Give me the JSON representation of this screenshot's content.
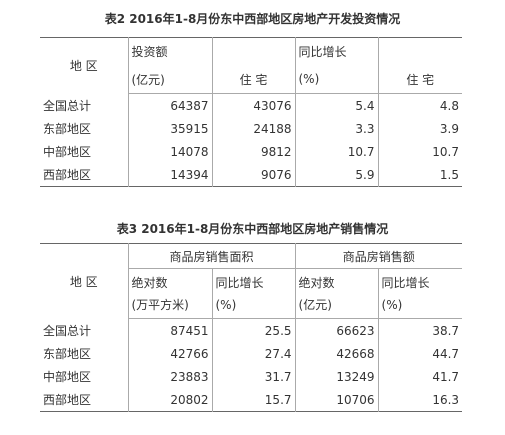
{
  "table2": {
    "title": "表2 2016年1-8月份东中西部地区房地产开发投资情况",
    "header": {
      "region": "地 区",
      "investment": "投资额",
      "investment_unit": "(亿元)",
      "residential": "住 宅",
      "growth": "同比增长",
      "growth_unit": "(%)",
      "growth_residential": "住 宅"
    },
    "rows": [
      [
        "全国总计",
        "64387",
        "43076",
        "5.4",
        "4.8"
      ],
      [
        "东部地区",
        "35915",
        "24188",
        "3.3",
        "3.9"
      ],
      [
        "中部地区",
        "14078",
        "9812",
        "10.7",
        "10.7"
      ],
      [
        "西部地区",
        "14394",
        "9076",
        "5.9",
        "1.5"
      ]
    ]
  },
  "table3": {
    "title": "表3 2016年1-8月份东中西部地区房地产销售情况",
    "header": {
      "region": "地 区",
      "area": "商品房销售面积",
      "sales": "商品房销售额",
      "sub": [
        [
          "绝对数",
          "(万平方米)"
        ],
        [
          "同比增长",
          "(%)"
        ],
        [
          "绝对数",
          "(亿元)"
        ],
        [
          "同比增长",
          "(%)"
        ]
      ]
    },
    "rows": [
      [
        "全国总计",
        "87451",
        "25.5",
        "66623",
        "38.7"
      ],
      [
        "东部地区",
        "42766",
        "27.4",
        "42668",
        "44.7"
      ],
      [
        "中部地区",
        "23883",
        "31.7",
        "13249",
        "41.7"
      ],
      [
        "西部地区",
        "20802",
        "15.7",
        "10706",
        "16.3"
      ]
    ]
  }
}
